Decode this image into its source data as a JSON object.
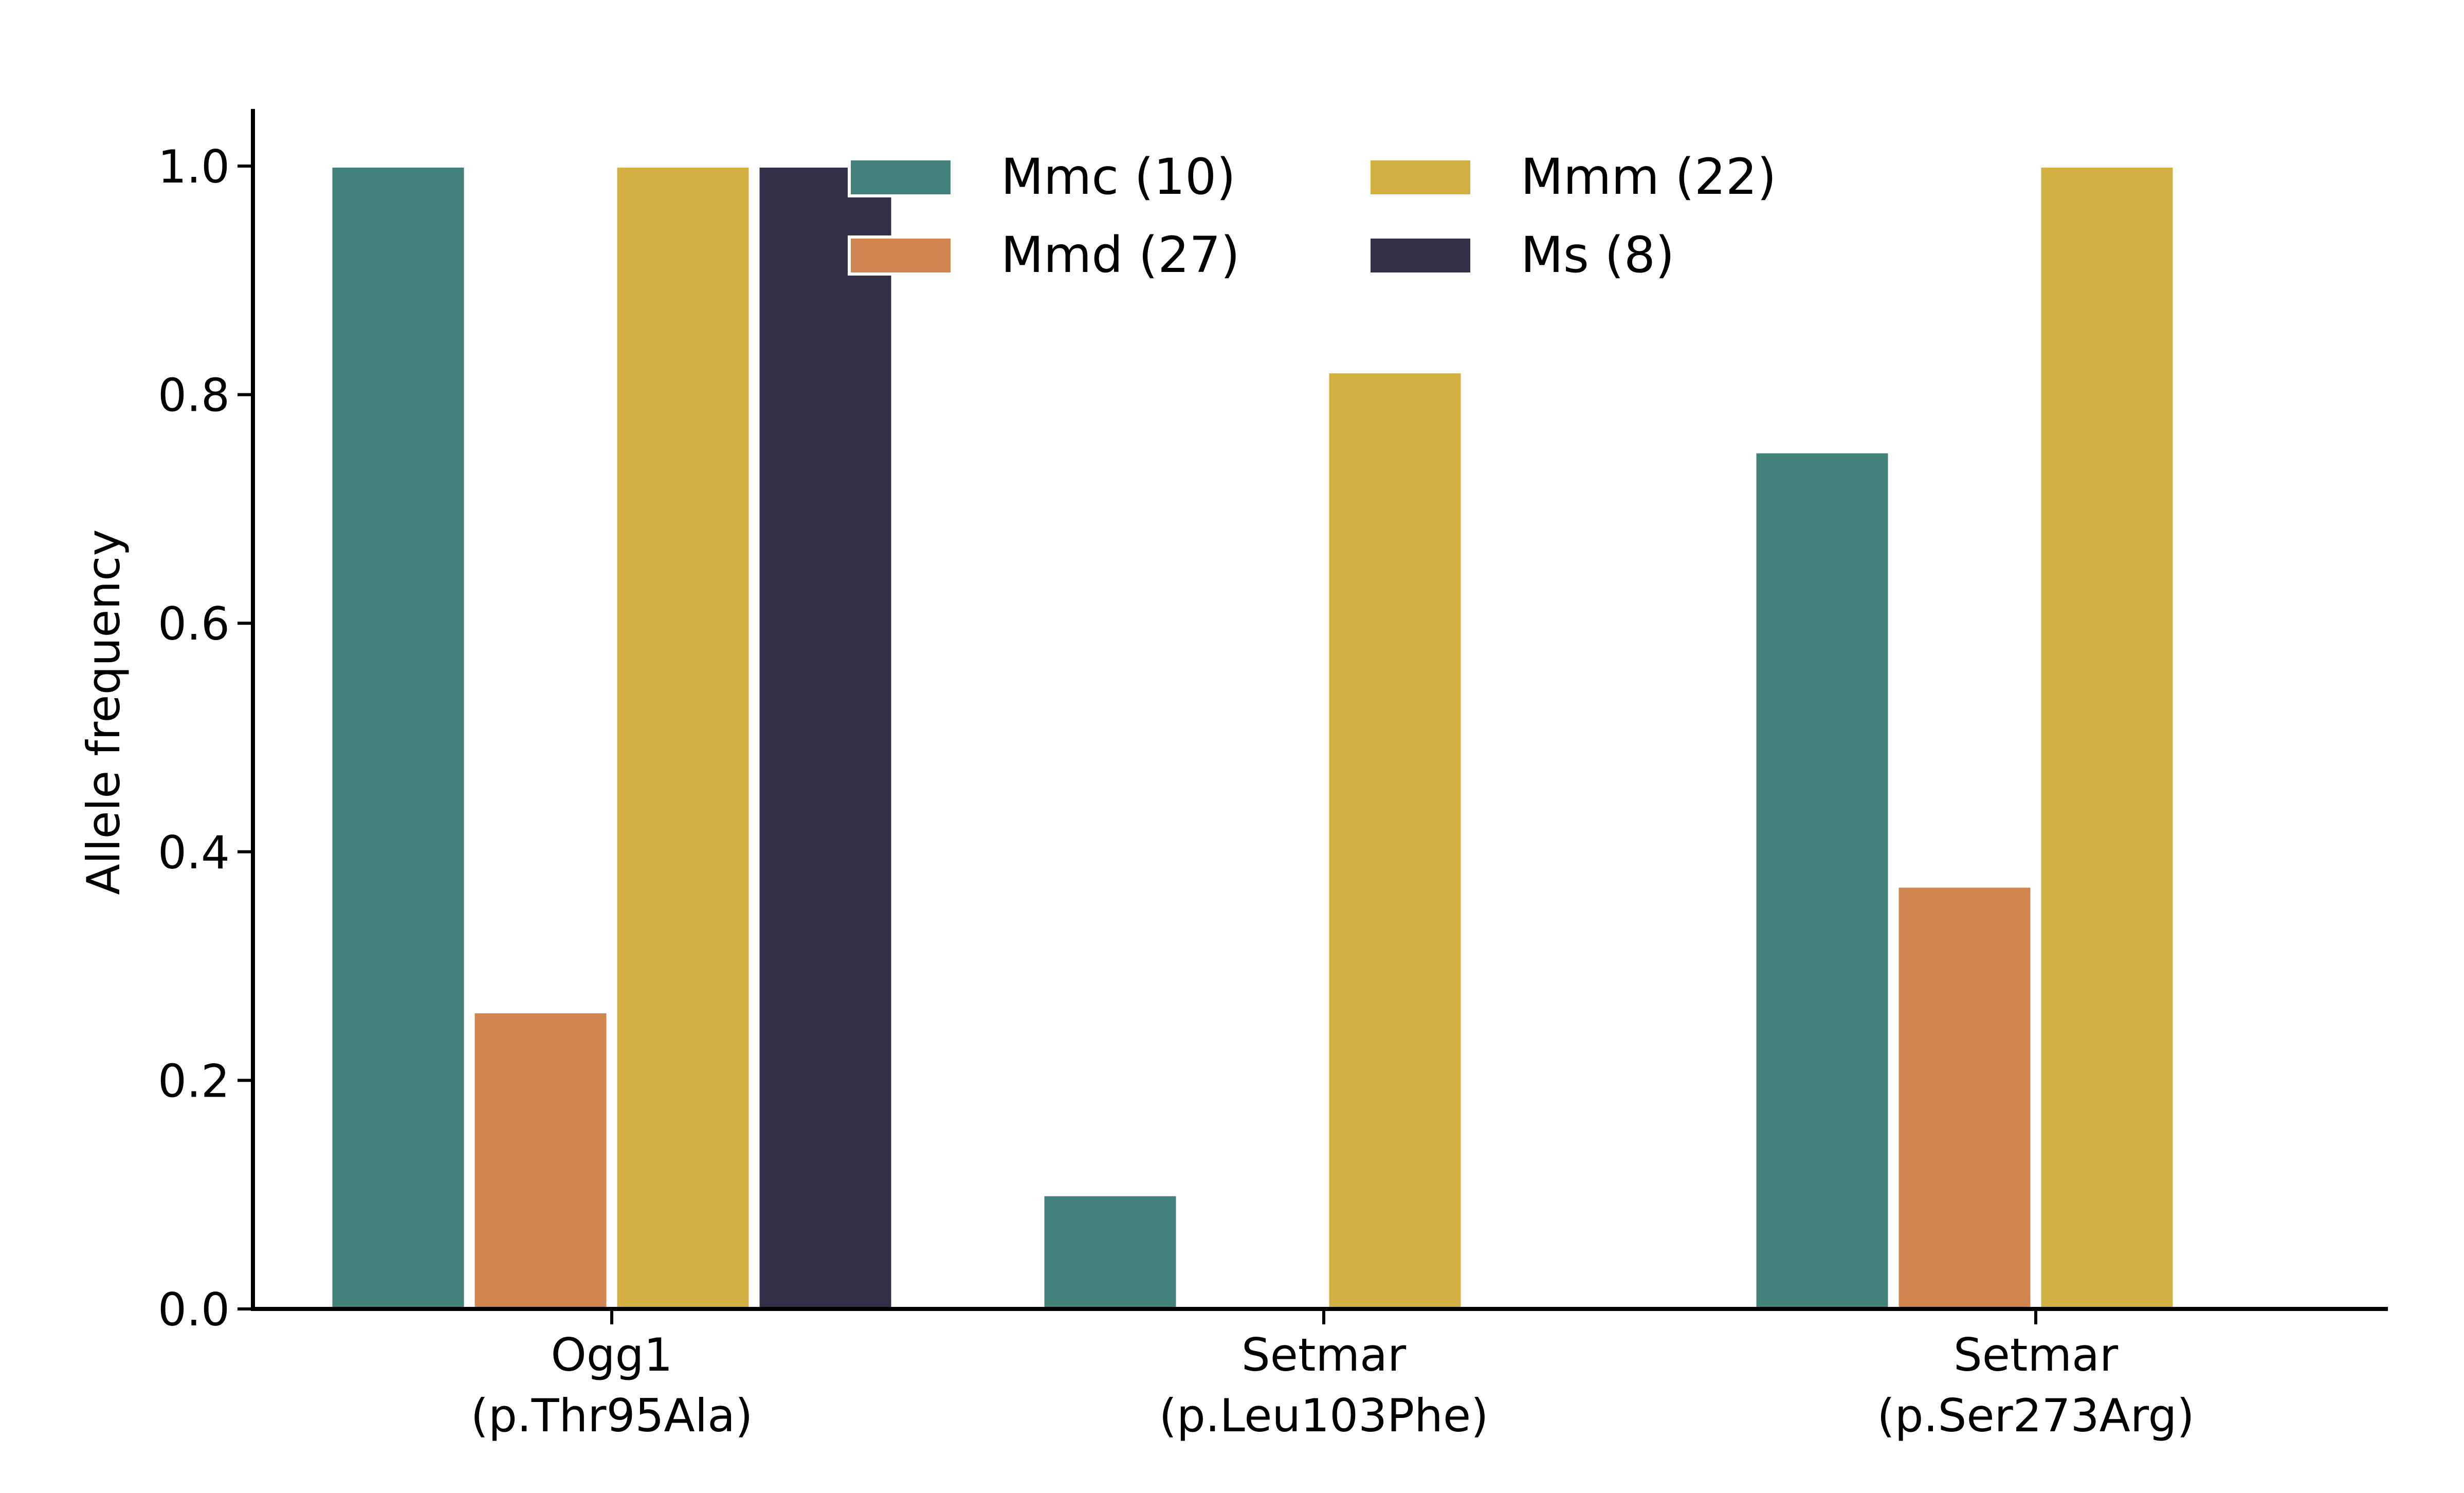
{
  "chart_data": {
    "type": "bar",
    "title": "",
    "xlabel": "",
    "ylabel": "Allele frequency",
    "ylim": [
      0,
      1.05
    ],
    "yticks": [
      "0.0",
      "0.2",
      "0.4",
      "0.6",
      "0.8",
      "1.0"
    ],
    "categories": [
      [
        "Ogg1",
        "(p.Thr95Ala)"
      ],
      [
        "Setmar",
        "(p.Leu103Phe)"
      ],
      [
        "Setmar",
        "(p.Ser273Arg)"
      ]
    ],
    "series": [
      {
        "name": "Mmc (10)",
        "color": "#44837B",
        "values": [
          1.0,
          0.1,
          0.75
        ]
      },
      {
        "name": "Mmd (27)",
        "color": "#D08450",
        "values": [
          0.26,
          0.0,
          0.37
        ]
      },
      {
        "name": "Mmm (22)",
        "color": "#D3B044",
        "values": [
          1.0,
          0.82,
          1.0
        ]
      },
      {
        "name": "Ms (8)",
        "color": "#332F46",
        "values": [
          1.0,
          0.0,
          0.0
        ]
      }
    ],
    "legend": {
      "position": "top-center",
      "columns": 2
    },
    "grid": false
  }
}
